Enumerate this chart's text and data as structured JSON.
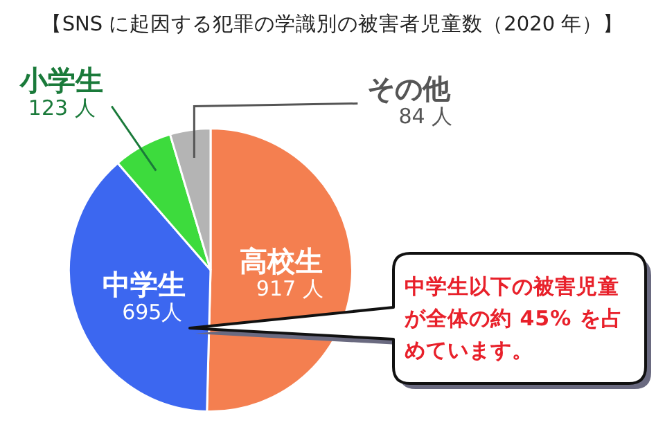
{
  "chart_data": {
    "type": "pie",
    "title": "【SNS に起因する犯罪の学識別の被害者児童数（2020 年）】",
    "categories": [
      "高校生",
      "中学生",
      "小学生",
      "その他"
    ],
    "values": [
      917,
      695,
      123,
      84
    ],
    "colors": [
      "#f47f50",
      "#3c67f0",
      "#3ddb3d",
      "#b4b4b4"
    ],
    "value_labels": [
      "917 人",
      "695人",
      "123 人",
      "84 人"
    ],
    "annotations": [
      "中学生以下の被害児童が全体の約 45% を占めています。"
    ]
  }
}
